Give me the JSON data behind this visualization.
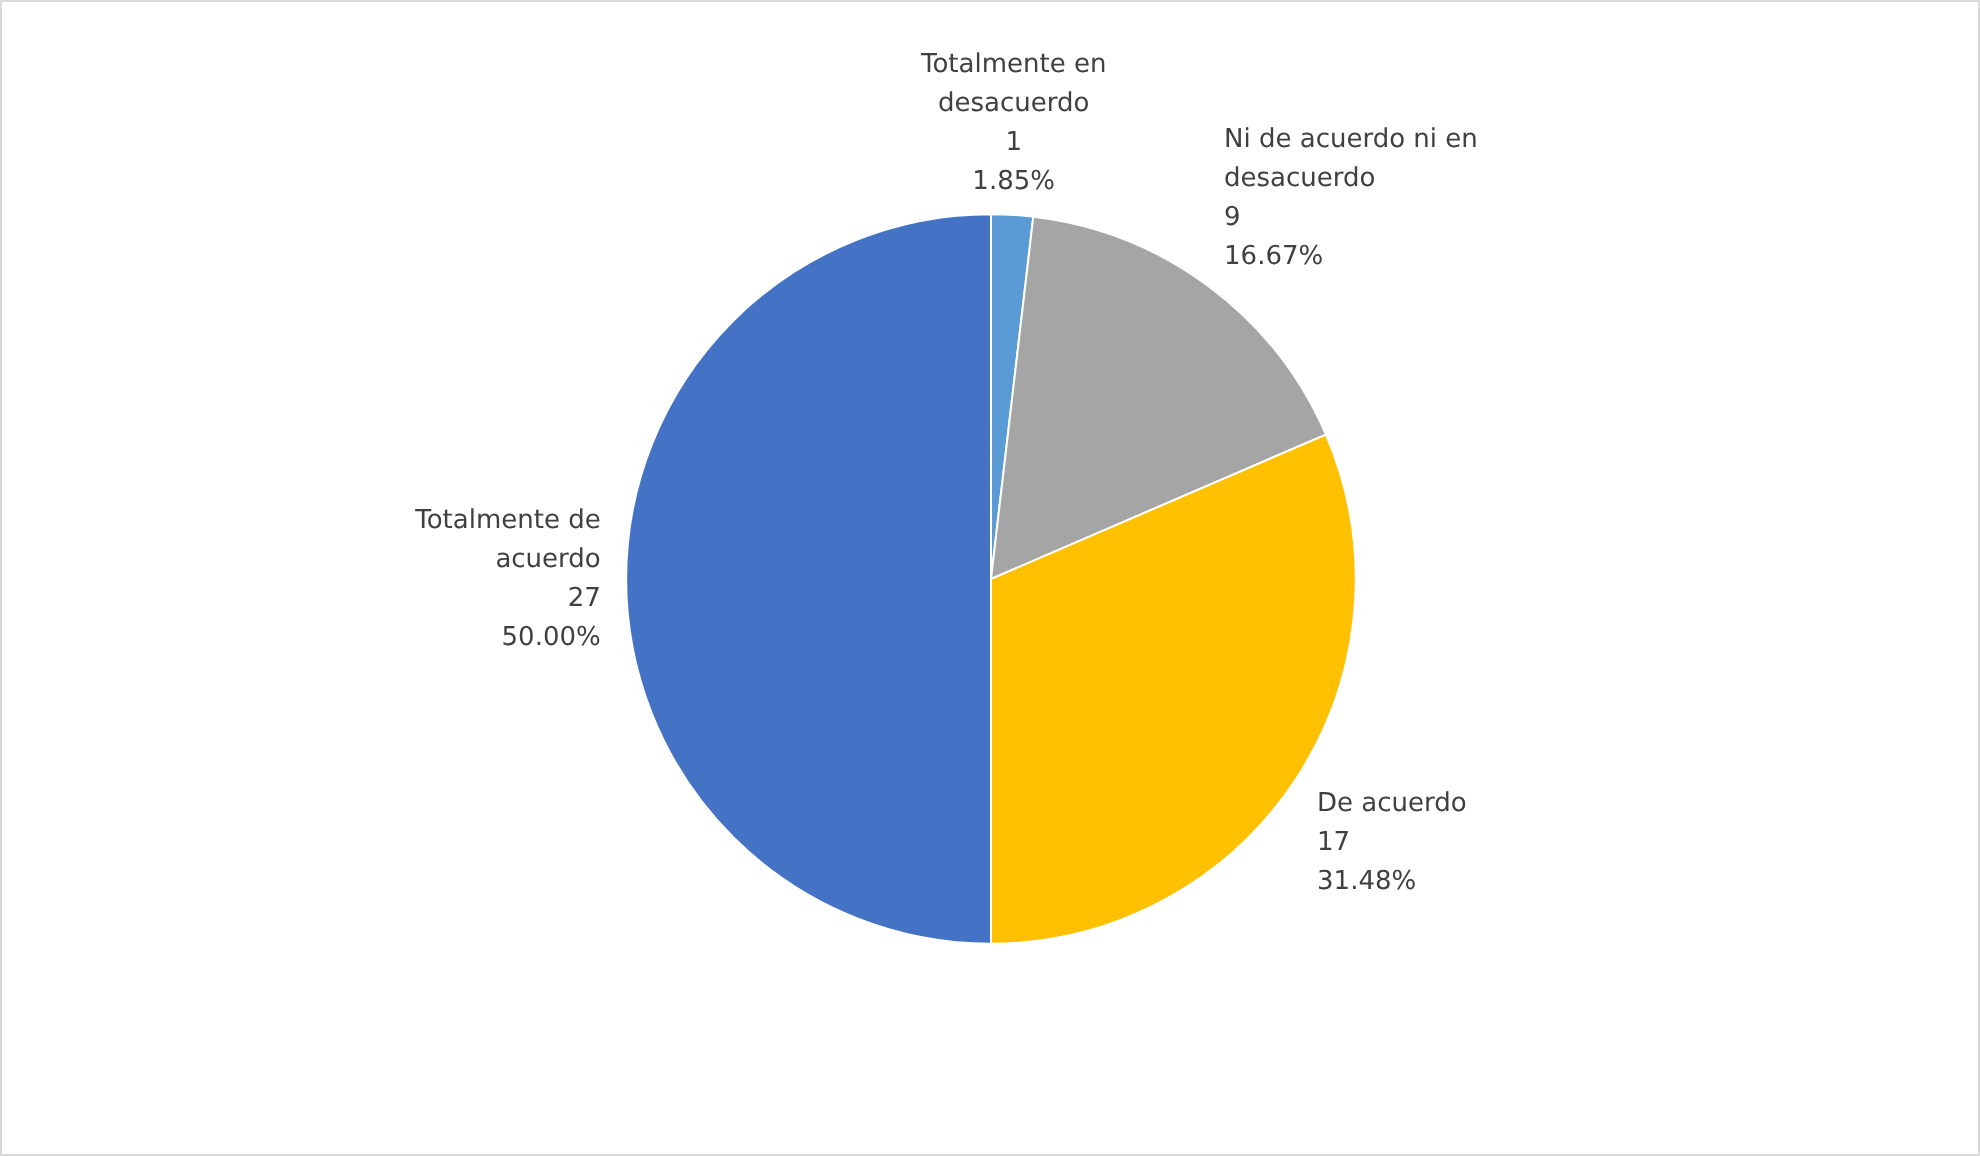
{
  "chart_data": {
    "type": "pie",
    "categories": [
      "Totalmente en desacuerdo",
      "Ni de acuerdo ni en desacuerdo",
      "De acuerdo",
      "Totalmente de acuerdo"
    ],
    "values": [
      1.85,
      16.67,
      31.48,
      50.0
    ],
    "value_labels": [
      "1\n1.85%",
      "9\n16.67%",
      "17\n31.48%",
      "27\n50.00%"
    ],
    "colors": [
      "#5b9bd5",
      "#a5a5a5",
      "#ffc000",
      "#4472c4"
    ]
  }
}
